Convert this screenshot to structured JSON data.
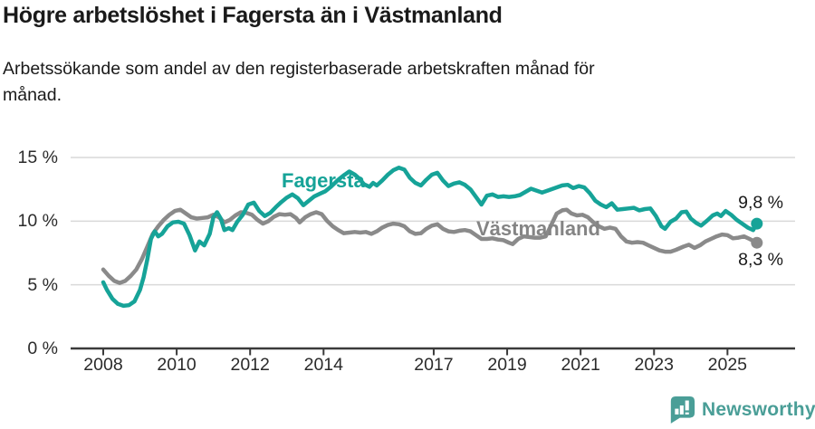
{
  "footer": {
    "brand": "Newsworthy",
    "brand_color": "#4A9E97"
  },
  "chart_data": {
    "type": "line",
    "title": "Högre arbetslöshet i Fagersta än i Västmanland",
    "subtitle": "Arbetssökande som andel av den registerbaserade arbetskraften månad för månad.",
    "subtitle_lines": [
      "Arbetssökande som andel av den registerbaserade arbetskraften månad för",
      "månad."
    ],
    "unit": "%",
    "xlabel": "",
    "ylabel": "",
    "grid": true,
    "legend_position": "inline-labels",
    "ylim": [
      0,
      15
    ],
    "xlim": [
      2007.1,
      2026.8
    ],
    "x_ticks": [
      {
        "v": 2008,
        "label": "2008"
      },
      {
        "v": 2010,
        "label": "2010"
      },
      {
        "v": 2012,
        "label": "2012"
      },
      {
        "v": 2014,
        "label": "2014"
      },
      {
        "v": 2017,
        "label": "2017"
      },
      {
        "v": 2019,
        "label": "2019"
      },
      {
        "v": 2021,
        "label": "2021"
      },
      {
        "v": 2023,
        "label": "2023"
      },
      {
        "v": 2025,
        "label": "2025"
      }
    ],
    "y_ticks": [
      {
        "v": 15,
        "label": "15 %"
      },
      {
        "v": 10,
        "label": "10 %"
      },
      {
        "v": 5,
        "label": "5 %"
      },
      {
        "v": 0,
        "label": "0 %"
      }
    ],
    "series": [
      {
        "name": "Fagersta",
        "color": "#16A398",
        "end_label": "9,8 %",
        "end_value": 9.8,
        "points": [
          [
            2008.0,
            5.2
          ],
          [
            2008.1,
            4.6
          ],
          [
            2008.25,
            3.9
          ],
          [
            2008.4,
            3.5
          ],
          [
            2008.55,
            3.35
          ],
          [
            2008.7,
            3.4
          ],
          [
            2008.85,
            3.7
          ],
          [
            2009.0,
            4.6
          ],
          [
            2009.1,
            5.6
          ],
          [
            2009.2,
            7.0
          ],
          [
            2009.3,
            8.6
          ],
          [
            2009.4,
            9.2
          ],
          [
            2009.5,
            8.8
          ],
          [
            2009.6,
            9.0
          ],
          [
            2009.75,
            9.6
          ],
          [
            2009.9,
            9.9
          ],
          [
            2010.05,
            9.95
          ],
          [
            2010.2,
            9.8
          ],
          [
            2010.35,
            8.9
          ],
          [
            2010.5,
            7.7
          ],
          [
            2010.62,
            8.4
          ],
          [
            2010.75,
            8.1
          ],
          [
            2010.9,
            9.0
          ],
          [
            2011.0,
            10.3
          ],
          [
            2011.1,
            10.7
          ],
          [
            2011.2,
            10.2
          ],
          [
            2011.3,
            9.3
          ],
          [
            2011.42,
            9.45
          ],
          [
            2011.52,
            9.3
          ],
          [
            2011.65,
            9.95
          ],
          [
            2011.8,
            10.5
          ],
          [
            2011.95,
            11.3
          ],
          [
            2012.1,
            11.45
          ],
          [
            2012.25,
            10.8
          ],
          [
            2012.4,
            10.4
          ],
          [
            2012.55,
            10.65
          ],
          [
            2012.7,
            11.1
          ],
          [
            2012.85,
            11.5
          ],
          [
            2013.0,
            11.85
          ],
          [
            2013.15,
            12.1
          ],
          [
            2013.3,
            11.8
          ],
          [
            2013.45,
            11.25
          ],
          [
            2013.6,
            11.6
          ],
          [
            2013.75,
            11.95
          ],
          [
            2013.9,
            12.15
          ],
          [
            2014.05,
            12.35
          ],
          [
            2014.2,
            12.7
          ],
          [
            2014.4,
            13.25
          ],
          [
            2014.55,
            13.6
          ],
          [
            2014.7,
            13.9
          ],
          [
            2014.85,
            13.65
          ],
          [
            2014.95,
            13.4
          ],
          [
            2015.1,
            12.9
          ],
          [
            2015.25,
            12.7
          ],
          [
            2015.35,
            13.0
          ],
          [
            2015.45,
            12.8
          ],
          [
            2015.6,
            13.2
          ],
          [
            2015.75,
            13.65
          ],
          [
            2015.9,
            14.0
          ],
          [
            2016.05,
            14.2
          ],
          [
            2016.2,
            14.05
          ],
          [
            2016.35,
            13.4
          ],
          [
            2016.5,
            13.0
          ],
          [
            2016.65,
            12.8
          ],
          [
            2016.8,
            13.25
          ],
          [
            2016.95,
            13.65
          ],
          [
            2017.1,
            13.8
          ],
          [
            2017.25,
            13.2
          ],
          [
            2017.4,
            12.75
          ],
          [
            2017.55,
            12.95
          ],
          [
            2017.7,
            13.05
          ],
          [
            2017.85,
            12.85
          ],
          [
            2018.0,
            12.5
          ],
          [
            2018.15,
            11.9
          ],
          [
            2018.3,
            11.3
          ],
          [
            2018.45,
            12.0
          ],
          [
            2018.6,
            12.1
          ],
          [
            2018.75,
            11.9
          ],
          [
            2018.9,
            11.95
          ],
          [
            2019.05,
            11.9
          ],
          [
            2019.2,
            11.95
          ],
          [
            2019.35,
            12.05
          ],
          [
            2019.5,
            12.3
          ],
          [
            2019.65,
            12.55
          ],
          [
            2019.8,
            12.4
          ],
          [
            2019.95,
            12.25
          ],
          [
            2020.1,
            12.4
          ],
          [
            2020.3,
            12.6
          ],
          [
            2020.5,
            12.8
          ],
          [
            2020.65,
            12.85
          ],
          [
            2020.8,
            12.6
          ],
          [
            2020.95,
            12.75
          ],
          [
            2021.1,
            12.65
          ],
          [
            2021.25,
            12.2
          ],
          [
            2021.4,
            11.6
          ],
          [
            2021.55,
            11.3
          ],
          [
            2021.7,
            11.1
          ],
          [
            2021.85,
            11.4
          ],
          [
            2022.0,
            10.9
          ],
          [
            2022.15,
            10.95
          ],
          [
            2022.3,
            11.0
          ],
          [
            2022.45,
            11.05
          ],
          [
            2022.6,
            10.85
          ],
          [
            2022.75,
            10.95
          ],
          [
            2022.9,
            11.0
          ],
          [
            2023.05,
            10.4
          ],
          [
            2023.2,
            9.6
          ],
          [
            2023.3,
            9.4
          ],
          [
            2023.45,
            9.95
          ],
          [
            2023.6,
            10.2
          ],
          [
            2023.75,
            10.7
          ],
          [
            2023.88,
            10.75
          ],
          [
            2024.0,
            10.2
          ],
          [
            2024.15,
            9.85
          ],
          [
            2024.28,
            9.65
          ],
          [
            2024.45,
            10.05
          ],
          [
            2024.6,
            10.45
          ],
          [
            2024.72,
            10.6
          ],
          [
            2024.82,
            10.4
          ],
          [
            2024.95,
            10.8
          ],
          [
            2025.1,
            10.5
          ],
          [
            2025.25,
            10.1
          ],
          [
            2025.4,
            9.8
          ],
          [
            2025.55,
            9.5
          ],
          [
            2025.7,
            9.3
          ],
          [
            2025.8,
            9.8
          ]
        ]
      },
      {
        "name": "Västmanland",
        "color": "#8A8A8A",
        "end_label": "8,3 %",
        "end_value": 8.3,
        "points": [
          [
            2008.0,
            6.2
          ],
          [
            2008.15,
            5.7
          ],
          [
            2008.3,
            5.3
          ],
          [
            2008.45,
            5.15
          ],
          [
            2008.6,
            5.3
          ],
          [
            2008.75,
            5.7
          ],
          [
            2008.9,
            6.2
          ],
          [
            2009.05,
            7.0
          ],
          [
            2009.2,
            8.0
          ],
          [
            2009.35,
            9.0
          ],
          [
            2009.5,
            9.6
          ],
          [
            2009.65,
            10.1
          ],
          [
            2009.8,
            10.5
          ],
          [
            2009.95,
            10.8
          ],
          [
            2010.1,
            10.9
          ],
          [
            2010.25,
            10.6
          ],
          [
            2010.4,
            10.3
          ],
          [
            2010.55,
            10.2
          ],
          [
            2010.7,
            10.25
          ],
          [
            2010.85,
            10.3
          ],
          [
            2011.0,
            10.5
          ],
          [
            2011.15,
            10.3
          ],
          [
            2011.3,
            9.9
          ],
          [
            2011.45,
            10.1
          ],
          [
            2011.6,
            10.45
          ],
          [
            2011.75,
            10.7
          ],
          [
            2011.9,
            10.65
          ],
          [
            2012.05,
            10.5
          ],
          [
            2012.2,
            10.1
          ],
          [
            2012.35,
            9.8
          ],
          [
            2012.5,
            10.0
          ],
          [
            2012.65,
            10.35
          ],
          [
            2012.8,
            10.55
          ],
          [
            2012.95,
            10.5
          ],
          [
            2013.1,
            10.55
          ],
          [
            2013.25,
            10.25
          ],
          [
            2013.35,
            9.9
          ],
          [
            2013.5,
            10.3
          ],
          [
            2013.65,
            10.55
          ],
          [
            2013.8,
            10.7
          ],
          [
            2013.95,
            10.55
          ],
          [
            2014.1,
            10.0
          ],
          [
            2014.25,
            9.6
          ],
          [
            2014.4,
            9.3
          ],
          [
            2014.55,
            9.05
          ],
          [
            2014.7,
            9.1
          ],
          [
            2014.85,
            9.15
          ],
          [
            2015.0,
            9.1
          ],
          [
            2015.15,
            9.15
          ],
          [
            2015.3,
            9.0
          ],
          [
            2015.45,
            9.2
          ],
          [
            2015.6,
            9.5
          ],
          [
            2015.75,
            9.7
          ],
          [
            2015.9,
            9.8
          ],
          [
            2016.05,
            9.75
          ],
          [
            2016.2,
            9.6
          ],
          [
            2016.35,
            9.2
          ],
          [
            2016.5,
            9.0
          ],
          [
            2016.65,
            9.05
          ],
          [
            2016.8,
            9.4
          ],
          [
            2016.95,
            9.65
          ],
          [
            2017.1,
            9.75
          ],
          [
            2017.25,
            9.4
          ],
          [
            2017.4,
            9.2
          ],
          [
            2017.55,
            9.15
          ],
          [
            2017.7,
            9.25
          ],
          [
            2017.85,
            9.3
          ],
          [
            2018.0,
            9.2
          ],
          [
            2018.15,
            8.9
          ],
          [
            2018.3,
            8.6
          ],
          [
            2018.45,
            8.6
          ],
          [
            2018.6,
            8.65
          ],
          [
            2018.75,
            8.55
          ],
          [
            2018.9,
            8.5
          ],
          [
            2019.05,
            8.3
          ],
          [
            2019.15,
            8.2
          ],
          [
            2019.3,
            8.6
          ],
          [
            2019.45,
            8.8
          ],
          [
            2019.6,
            8.75
          ],
          [
            2019.75,
            8.7
          ],
          [
            2019.9,
            8.7
          ],
          [
            2020.05,
            8.8
          ],
          [
            2020.2,
            9.7
          ],
          [
            2020.35,
            10.6
          ],
          [
            2020.5,
            10.85
          ],
          [
            2020.62,
            10.9
          ],
          [
            2020.75,
            10.6
          ],
          [
            2020.9,
            10.45
          ],
          [
            2021.05,
            10.5
          ],
          [
            2021.2,
            10.3
          ],
          [
            2021.35,
            9.9
          ],
          [
            2021.5,
            9.6
          ],
          [
            2021.65,
            9.4
          ],
          [
            2021.8,
            9.5
          ],
          [
            2021.95,
            9.4
          ],
          [
            2022.1,
            8.8
          ],
          [
            2022.25,
            8.4
          ],
          [
            2022.4,
            8.3
          ],
          [
            2022.55,
            8.35
          ],
          [
            2022.7,
            8.3
          ],
          [
            2022.85,
            8.1
          ],
          [
            2023.0,
            7.9
          ],
          [
            2023.15,
            7.7
          ],
          [
            2023.3,
            7.6
          ],
          [
            2023.45,
            7.6
          ],
          [
            2023.6,
            7.75
          ],
          [
            2023.8,
            8.0
          ],
          [
            2023.95,
            8.15
          ],
          [
            2024.1,
            7.9
          ],
          [
            2024.25,
            8.1
          ],
          [
            2024.4,
            8.4
          ],
          [
            2024.55,
            8.6
          ],
          [
            2024.7,
            8.8
          ],
          [
            2024.85,
            8.95
          ],
          [
            2025.0,
            8.9
          ],
          [
            2025.15,
            8.65
          ],
          [
            2025.3,
            8.7
          ],
          [
            2025.45,
            8.8
          ],
          [
            2025.6,
            8.6
          ],
          [
            2025.8,
            8.3
          ]
        ]
      }
    ]
  }
}
